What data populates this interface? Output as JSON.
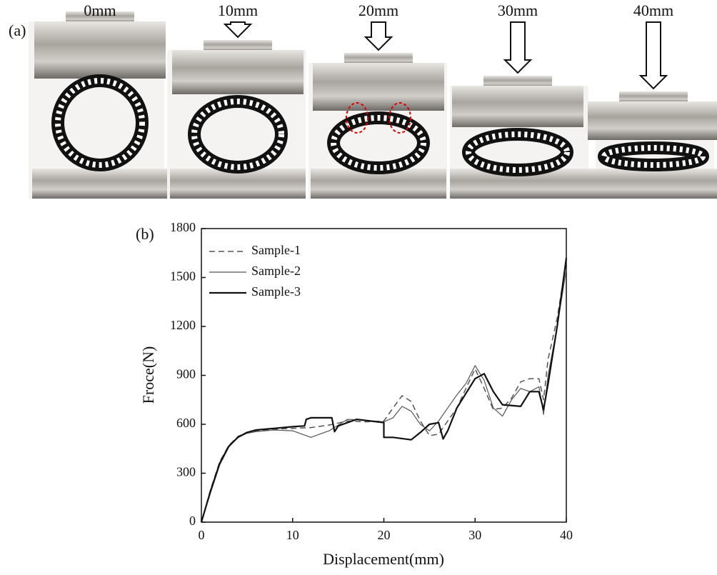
{
  "panel_a": {
    "label": "(a)",
    "captions": [
      "0mm",
      "10mm",
      "20mm",
      "30mm",
      "40mm"
    ]
  },
  "chart_data": {
    "type": "line",
    "panel_label": "(b)",
    "x_label": "Displacement(mm)",
    "y_label": "Froce(N)",
    "xlim": [
      0,
      40
    ],
    "xticks": [
      0,
      10,
      20,
      30,
      40
    ],
    "ylim": [
      0,
      1800
    ],
    "yticks": [
      0,
      300,
      600,
      900,
      1200,
      1500,
      1800
    ],
    "legend": "upper left",
    "series": [
      {
        "name": "Sample-1",
        "color": "#555555",
        "style": "dashed",
        "x": [
          0,
          1,
          2,
          3,
          4,
          5,
          6,
          8,
          10,
          12,
          14,
          16,
          18,
          20,
          21,
          22,
          23,
          24,
          25,
          26,
          27,
          28,
          29,
          30,
          31,
          32,
          33,
          34,
          35,
          36,
          37,
          37.5,
          38,
          39,
          40
        ],
        "values": [
          0,
          200,
          370,
          470,
          525,
          550,
          560,
          570,
          575,
          580,
          595,
          620,
          615,
          620,
          700,
          775,
          740,
          620,
          530,
          540,
          620,
          700,
          820,
          940,
          820,
          690,
          700,
          760,
          860,
          880,
          880,
          750,
          1000,
          1250,
          1600
        ]
      },
      {
        "name": "Sample-2",
        "color": "#555555",
        "style": "thin",
        "x": [
          0,
          1,
          2,
          3,
          4,
          5,
          6,
          8,
          10,
          12,
          14,
          16,
          18,
          20,
          21,
          22,
          23,
          24,
          25,
          26,
          27,
          28,
          29,
          30,
          31,
          32,
          33,
          34,
          35,
          36,
          37,
          37.5,
          38,
          39,
          40
        ],
        "values": [
          0,
          180,
          350,
          460,
          520,
          545,
          555,
          565,
          560,
          520,
          560,
          630,
          625,
          615,
          640,
          710,
          680,
          600,
          560,
          620,
          700,
          780,
          850,
          960,
          870,
          700,
          650,
          750,
          820,
          800,
          830,
          660,
          900,
          1200,
          1550
        ]
      },
      {
        "name": "Sample-3",
        "color": "#111111",
        "style": "thick",
        "x": [
          0,
          1,
          2,
          3,
          4,
          5,
          6,
          8,
          10,
          11.3,
          11.5,
          12,
          14.3,
          14.6,
          15,
          17,
          20,
          20,
          21,
          23,
          24,
          25,
          26,
          26.5,
          27,
          28,
          30,
          31,
          32,
          33,
          35,
          36,
          37,
          37.5,
          38,
          39,
          40
        ],
        "values": [
          0,
          190,
          360,
          465,
          520,
          550,
          565,
          575,
          585,
          590,
          630,
          640,
          640,
          555,
          590,
          630,
          610,
          520,
          520,
          505,
          550,
          600,
          610,
          510,
          560,
          700,
          880,
          910,
          800,
          720,
          710,
          800,
          800,
          690,
          850,
          1200,
          1620
        ]
      }
    ]
  }
}
